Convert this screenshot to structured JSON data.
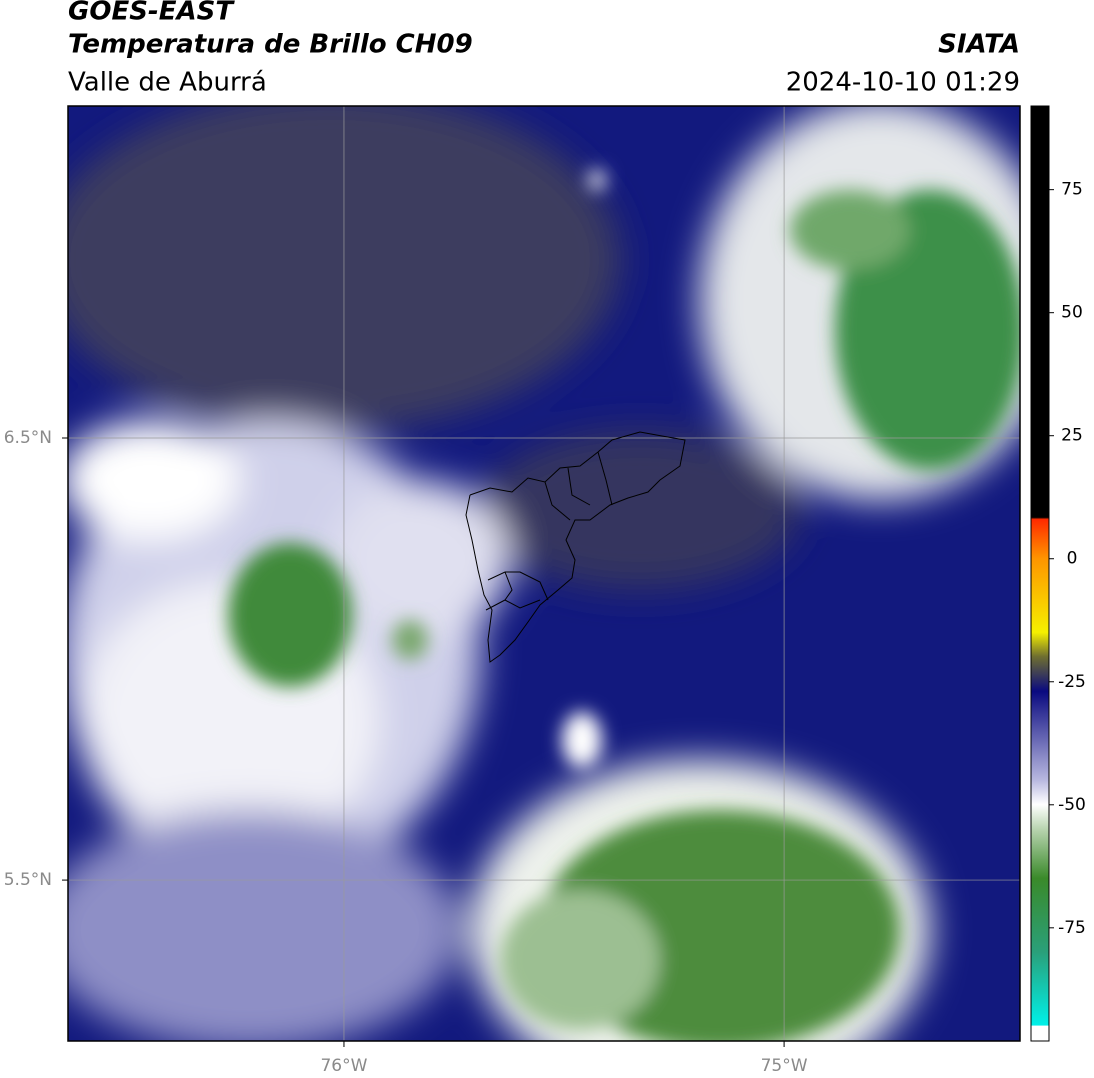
{
  "header": {
    "title": "GOES-EAST",
    "subtitle": "Temperatura de Brillo CH09",
    "region": "Valle de Aburrá",
    "source": "SIATA",
    "datetime": "2024-10-10 01:29"
  },
  "map": {
    "xlim": [
      -76.627,
      -74.464
    ],
    "ylim": [
      5.136,
      7.251
    ],
    "xticks": [
      {
        "value": -76,
        "label": "76°W"
      },
      {
        "value": -75,
        "label": "75°W"
      }
    ],
    "yticks": [
      {
        "value": 6.5,
        "label": "6.5°N"
      },
      {
        "value": 5.5,
        "label": "5.5°N"
      }
    ],
    "grid": true
  },
  "colorbar": {
    "clim": [
      -98,
      92
    ],
    "ticks": [
      75,
      50,
      25,
      0,
      -25,
      -50,
      -75
    ]
  }
}
